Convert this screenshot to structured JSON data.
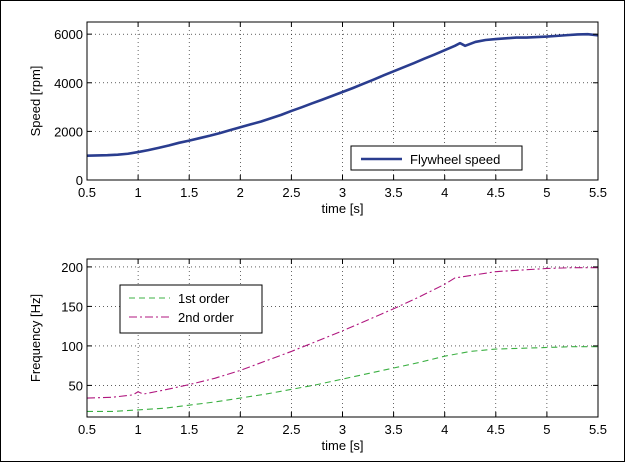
{
  "chart_data": [
    {
      "type": "line",
      "xlabel": "time [s]",
      "ylabel": "Speed [rpm]",
      "xlim": [
        0.5,
        5.5
      ],
      "ylim": [
        0,
        6500
      ],
      "xticks": [
        0.5,
        1,
        1.5,
        2,
        2.5,
        3,
        3.5,
        4,
        4.5,
        5,
        5.5
      ],
      "yticks": [
        0,
        2000,
        4000,
        6000
      ],
      "grid": true,
      "legend": "bottom-right",
      "series": [
        {
          "name": "Flywheel speed",
          "color": "#2a3d8f",
          "x": [
            0.5,
            0.6,
            0.7,
            0.8,
            0.9,
            1.0,
            1.1,
            1.2,
            1.3,
            1.4,
            1.5,
            1.6,
            1.7,
            1.8,
            1.9,
            2.0,
            2.1,
            2.2,
            2.3,
            2.4,
            2.5,
            2.6,
            2.7,
            2.8,
            2.9,
            3.0,
            3.1,
            3.2,
            3.3,
            3.4,
            3.5,
            3.6,
            3.7,
            3.8,
            3.9,
            4.0,
            4.1,
            4.15,
            4.2,
            4.3,
            4.4,
            4.5,
            4.6,
            4.7,
            4.8,
            4.9,
            5.0,
            5.1,
            5.2,
            5.3,
            5.4,
            5.5
          ],
          "y": [
            1000,
            1010,
            1020,
            1040,
            1080,
            1150,
            1230,
            1320,
            1420,
            1530,
            1620,
            1720,
            1820,
            1930,
            2050,
            2170,
            2290,
            2400,
            2540,
            2680,
            2840,
            2990,
            3150,
            3300,
            3460,
            3620,
            3780,
            3950,
            4120,
            4300,
            4470,
            4640,
            4810,
            4990,
            5160,
            5340,
            5520,
            5630,
            5520,
            5680,
            5760,
            5800,
            5830,
            5860,
            5860,
            5880,
            5900,
            5930,
            5960,
            5990,
            6000,
            5950
          ]
        }
      ]
    },
    {
      "type": "line",
      "xlabel": "time [s]",
      "ylabel": "Frequency [Hz]",
      "xlim": [
        0.5,
        5.5
      ],
      "ylim": [
        10,
        210
      ],
      "xticks": [
        0.5,
        1,
        1.5,
        2,
        2.5,
        3,
        3.5,
        4,
        4.5,
        5,
        5.5
      ],
      "yticks": [
        50,
        100,
        150,
        200
      ],
      "grid": true,
      "legend": "top-left",
      "series": [
        {
          "name": "1st order",
          "color": "#3cb043",
          "dash": "dashed",
          "x": [
            0.5,
            0.75,
            1.0,
            1.25,
            1.5,
            1.75,
            2.0,
            2.25,
            2.5,
            2.75,
            3.0,
            3.25,
            3.5,
            3.75,
            4.0,
            4.25,
            4.5,
            4.75,
            5.0,
            5.25,
            5.5
          ],
          "y": [
            17,
            17,
            19,
            21,
            25,
            29,
            34,
            39,
            45,
            51,
            58,
            65,
            72,
            79,
            87,
            93,
            96,
            97,
            98,
            99,
            99
          ]
        },
        {
          "name": "2nd order",
          "color": "#b0177f",
          "dash": "dashdot",
          "x": [
            0.5,
            0.75,
            0.95,
            1.0,
            1.05,
            1.25,
            1.5,
            1.75,
            2.0,
            2.25,
            2.5,
            2.75,
            3.0,
            3.25,
            3.5,
            3.75,
            4.0,
            4.1,
            4.25,
            4.5,
            4.75,
            5.0,
            5.25,
            5.5
          ],
          "y": [
            34,
            35,
            38,
            42,
            39,
            44,
            51,
            59,
            69,
            81,
            93,
            106,
            119,
            133,
            147,
            162,
            178,
            186,
            189,
            194,
            196,
            198,
            199,
            199
          ]
        }
      ]
    }
  ]
}
